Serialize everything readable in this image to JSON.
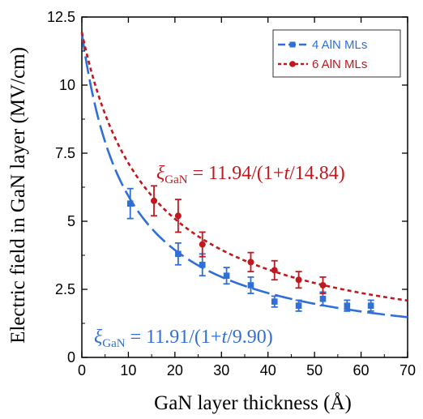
{
  "chart_data": {
    "type": "scatter",
    "xlabel": "GaN layer thickness (Å)",
    "ylabel": "Electric field in GaN layer (MV/cm)",
    "xlim": [
      0,
      70
    ],
    "ylim": [
      0,
      12.5
    ],
    "xticks": [
      "0",
      "10",
      "20",
      "30",
      "40",
      "50",
      "60",
      "70"
    ],
    "yticks": [
      "0",
      "2.5",
      "5",
      "7.5",
      "10",
      "12.5"
    ],
    "grid": false,
    "legend_position": "top-right",
    "series": [
      {
        "name": "4 AlN MLs",
        "color": "#2f6fd6",
        "marker": "square",
        "line_style": "long-dash",
        "x": [
          10.4,
          20.7,
          25.9,
          31.1,
          36.3,
          41.4,
          46.6,
          51.8,
          57.0,
          62.1
        ],
        "y": [
          5.65,
          3.8,
          3.4,
          3.0,
          2.65,
          2.05,
          1.9,
          2.15,
          1.9,
          1.9
        ],
        "err": [
          0.55,
          0.4,
          0.4,
          0.3,
          0.3,
          0.2,
          0.2,
          0.25,
          0.2,
          0.2
        ],
        "fit": {
          "a": 11.91,
          "b": 9.9,
          "label_prefix": "ξ",
          "label_sub": "GaN",
          "label_eq": " = 11.91/(1+",
          "label_var": "t",
          "label_tail": "/9.90)"
        }
      },
      {
        "name": "6 AlN MLs",
        "color": "#c0181e",
        "marker": "circle",
        "line_style": "dotted",
        "x": [
          15.5,
          20.7,
          25.9,
          36.3,
          41.4,
          46.6,
          51.8
        ],
        "y": [
          5.75,
          5.2,
          4.15,
          3.5,
          3.2,
          2.85,
          2.65
        ],
        "err": [
          0.55,
          0.6,
          0.45,
          0.35,
          0.35,
          0.3,
          0.3
        ],
        "fit": {
          "a": 11.94,
          "b": 14.84,
          "label_prefix": "ξ",
          "label_sub": "GaN",
          "label_eq": " = 11.94/(1+",
          "label_var": "t",
          "label_tail": "/14.84)"
        }
      }
    ]
  }
}
